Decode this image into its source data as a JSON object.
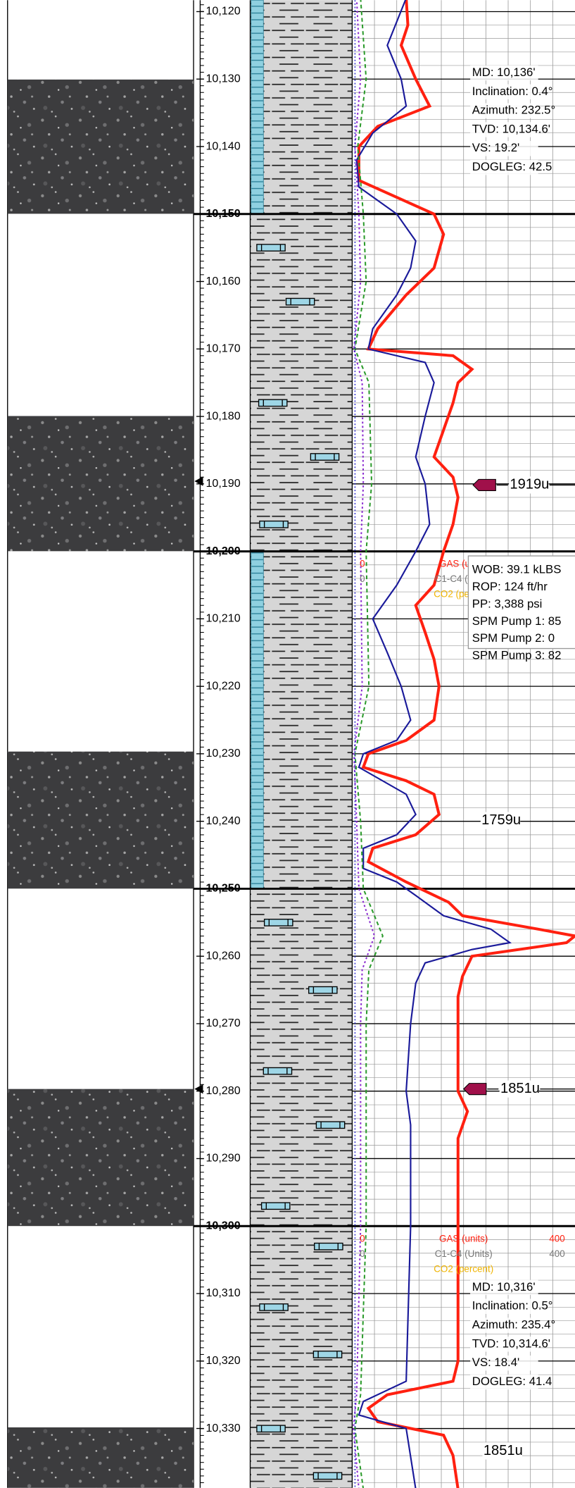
{
  "chart_data": {
    "type": "line",
    "ylim": [
      10118.3,
      10338.8
    ],
    "xlim": [
      0,
      400
    ],
    "yticks": [
      {
        "value": 10120,
        "label": "10,120"
      },
      {
        "value": 10130,
        "label": "10,130"
      },
      {
        "value": 10140,
        "label": "10,140"
      },
      {
        "value": 10150,
        "label": "10,150"
      },
      {
        "value": 10160,
        "label": "10,160"
      },
      {
        "value": 10170,
        "label": "10,170"
      },
      {
        "value": 10180,
        "label": "10,180"
      },
      {
        "value": 10190,
        "label": "10,190"
      },
      {
        "value": 10200,
        "label": "10,200"
      },
      {
        "value": 10210,
        "label": "10,210"
      },
      {
        "value": 10220,
        "label": "10,220"
      },
      {
        "value": 10230,
        "label": "10,230"
      },
      {
        "value": 10240,
        "label": "10,240"
      },
      {
        "value": 10250,
        "label": "10,250"
      },
      {
        "value": 10260,
        "label": "10,260"
      },
      {
        "value": 10270,
        "label": "10,270"
      },
      {
        "value": 10280,
        "label": "10,280"
      },
      {
        "value": 10290,
        "label": "10,290"
      },
      {
        "value": 10300,
        "label": "10,300"
      },
      {
        "value": 10310,
        "label": "10,310"
      },
      {
        "value": 10320,
        "label": "10,320"
      },
      {
        "value": 10330,
        "label": "10,330"
      }
    ],
    "series": [
      {
        "name": "GAS (units)",
        "color": "#ff2010",
        "x": [
          10118,
          10122,
          10125,
          10130,
          10134,
          10137,
          10140,
          10145,
          10150,
          10153,
          10158,
          10162,
          10167,
          10170,
          10171,
          10173,
          10175,
          10178,
          10182,
          10186,
          10189,
          10192,
          10196,
          10200,
          10205,
          10208,
          10212,
          10216,
          10220,
          10225,
          10228,
          10230,
          10232,
          10234,
          10236,
          10239,
          10242,
          10244,
          10246,
          10249,
          10252,
          10254,
          10256,
          10257,
          10258,
          10260,
          10263,
          10266,
          10275,
          10280,
          10283,
          10287,
          10295,
          10310,
          10320,
          10323,
          10325,
          10327,
          10329,
          10331,
          10334,
          10339
        ],
        "values": [
          97,
          100,
          88,
          114,
          139,
          46,
          12,
          12,
          147,
          164,
          147,
          97,
          46,
          29,
          181,
          215,
          190,
          181,
          164,
          147,
          181,
          190,
          181,
          164,
          147,
          114,
          131,
          147,
          156,
          147,
          97,
          29,
          20,
          97,
          147,
          156,
          114,
          37,
          29,
          97,
          173,
          198,
          334,
          400,
          385,
          215,
          198,
          190,
          190,
          190,
          207,
          190,
          190,
          190,
          190,
          181,
          63,
          29,
          46,
          164,
          181,
          190
        ]
      },
      {
        "name": "C1-C4 (Units)",
        "color": "#1a1a9a",
        "x": [
          10118,
          10125,
          10130,
          10134,
          10138,
          10142,
          10146,
          10150,
          10154,
          10158,
          10162,
          10167,
          10170,
          10172,
          10175,
          10180,
          10186,
          10190,
          10196,
          10200,
          10205,
          10210,
          10215,
          10220,
          10225,
          10228,
          10230,
          10232,
          10236,
          10239,
          10242,
          10244,
          10247,
          10249,
          10251,
          10254,
          10256,
          10258,
          10259,
          10261,
          10264,
          10270,
          10280,
          10285,
          10300,
          10323,
          10326,
          10328,
          10330,
          10339
        ],
        "values": [
          97,
          63,
          88,
          97,
          37,
          8,
          12,
          80,
          114,
          105,
          80,
          37,
          29,
          131,
          147,
          131,
          114,
          131,
          139,
          114,
          80,
          37,
          63,
          88,
          105,
          80,
          20,
          12,
          97,
          114,
          80,
          20,
          20,
          80,
          114,
          164,
          249,
          283,
          215,
          131,
          114,
          105,
          97,
          105,
          105,
          97,
          20,
          12,
          97,
          114
        ]
      },
      {
        "color": "#2a9a2a",
        "x": [
          10118,
          10130,
          10140,
          10150,
          10160,
          10170,
          10175,
          10190,
          10200,
          10220,
          10230,
          10240,
          10250,
          10257,
          10262,
          10270,
          10300,
          10325,
          10330,
          10339
        ],
        "values": [
          15,
          25,
          10,
          20,
          25,
          5,
          30,
          35,
          25,
          30,
          5,
          15,
          20,
          55,
          30,
          25,
          25,
          15,
          5,
          20
        ]
      },
      {
        "color": "#8a2ad0",
        "x": [
          10118,
          10130,
          10140,
          10150,
          10160,
          10170,
          10175,
          10190,
          10200,
          10220,
          10230,
          10240,
          10250,
          10257,
          10262,
          10270,
          10300,
          10325,
          10330,
          10339
        ],
        "values": [
          8,
          15,
          5,
          12,
          15,
          3,
          18,
          20,
          15,
          18,
          3,
          8,
          12,
          40,
          18,
          15,
          15,
          8,
          2,
          12
        ]
      }
    ],
    "co2_label": "CO2 (percent)",
    "surveys": [
      [
        "MD: 10,136'",
        "Inclination: 0.4°",
        "Azimuth: 232.5°",
        "TVD: 10,134.6'",
        "VS: 19.2'",
        "DOGLEG: 42.5"
      ],
      [
        "MD: 10,316'",
        "Inclination: 0.5°",
        "Azimuth: 235.4°",
        "TVD: 10,314.6'",
        "VS: 18.4'",
        "DOGLEG: 41.4"
      ]
    ],
    "drilling": [
      "WOB: 39.1 kLBS",
      "ROP: 124 ft/hr",
      "PP: 3,388 psi",
      "SPM Pump 1: 85",
      "SPM Pump 2: 0",
      "SPM Pump 3: 82"
    ],
    "gas_peaks": [
      "1919u",
      "1759u",
      "1851u",
      "1851u"
    ]
  }
}
